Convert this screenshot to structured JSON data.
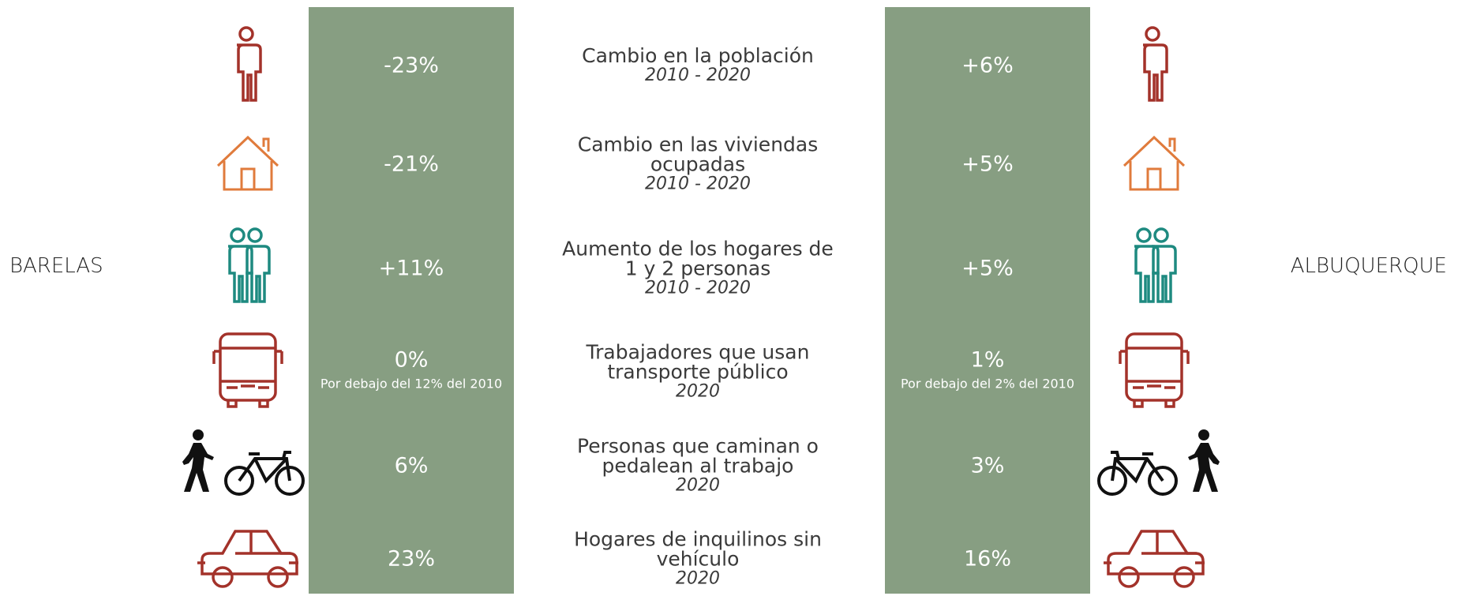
{
  "left_label": "BARELAS",
  "right_label": "ALBUQUERQUE",
  "rows": [
    {
      "title": "Cambio en la población",
      "period": "2010 - 2020",
      "barelas": "-23%",
      "albuquerque": "+6%"
    },
    {
      "title": "Cambio en las viviendas ocupadas",
      "period": "2010 - 2020",
      "barelas": "-21%",
      "albuquerque": "+5%"
    },
    {
      "title": "Aumento de los hogares de 1 y 2 personas",
      "period": "2010 - 2020",
      "barelas": "+11%",
      "albuquerque": "+5%"
    },
    {
      "title": "Trabajadores que usan transporte público",
      "period": "2020",
      "barelas": "0%",
      "barelas_note": "Por debajo del 12% del 2010",
      "albuquerque": "1%",
      "albuquerque_note": "Por debajo del 2% del 2010"
    },
    {
      "title": "Personas que caminan o pedalean al trabajo",
      "period": "2020",
      "barelas": "6%",
      "albuquerque": "3%"
    },
    {
      "title": "Hogares de inquilinos sin vehículo",
      "period": "2020",
      "barelas": "23%",
      "albuquerque": "16%"
    }
  ]
}
